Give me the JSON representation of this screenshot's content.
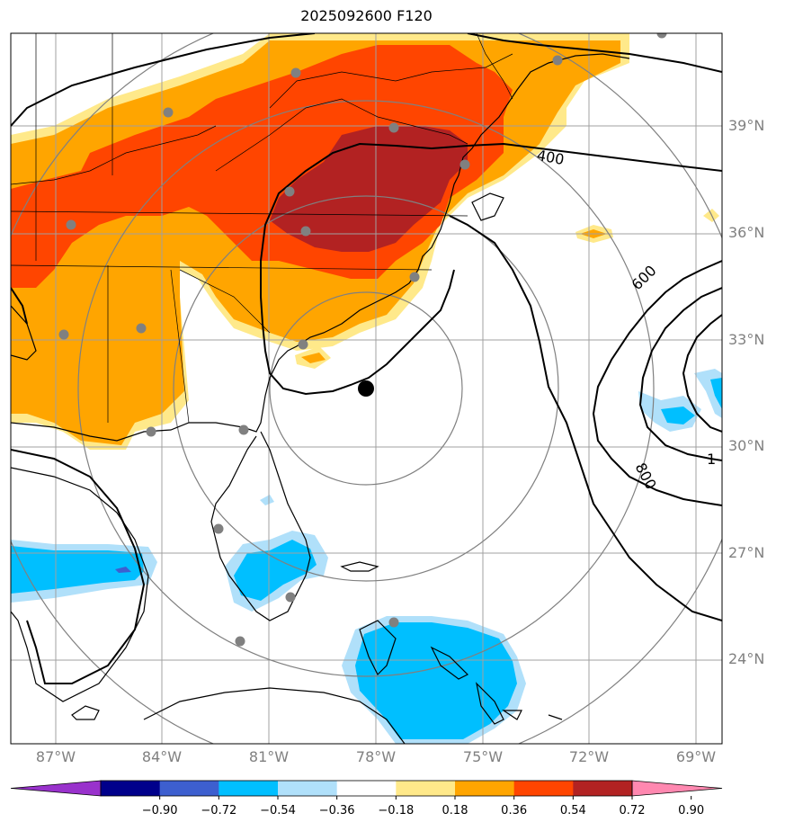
{
  "title": "2025092600 F120",
  "lat_labels": [
    "39°N",
    "36°N",
    "33°N",
    "30°N",
    "27°N",
    "24°N"
  ],
  "lon_labels": [
    "87°W",
    "84°W",
    "81°W",
    "78°W",
    "75°W",
    "72°W",
    "69°W"
  ],
  "contour_labels": [
    "400",
    "600",
    "800",
    "1"
  ],
  "colorbar": {
    "ticks": [
      "−0.90",
      "−0.72",
      "−0.54",
      "−0.36",
      "−0.18",
      "0.18",
      "0.36",
      "0.54",
      "0.72",
      "0.90"
    ],
    "colors": [
      "#9932cc",
      "#00008b",
      "#3d5fcf",
      "#00bfff",
      "#b0e0fa",
      "#ffffff",
      "#ffe98a",
      "#ffa500",
      "#ff4500",
      "#b22222",
      "#ff88b0"
    ]
  },
  "colors": {
    "fill_0_18": "#ffe98a",
    "fill_0_36": "#ffa500",
    "fill_0_54": "#ff4500",
    "fill_0_72": "#b22222",
    "fill_neg_0_18": "#b0e0fa",
    "fill_neg_0_36": "#00bfff",
    "fill_neg_0_72": "#3d5fcf",
    "grid": "#808080",
    "station": "#808080"
  }
}
